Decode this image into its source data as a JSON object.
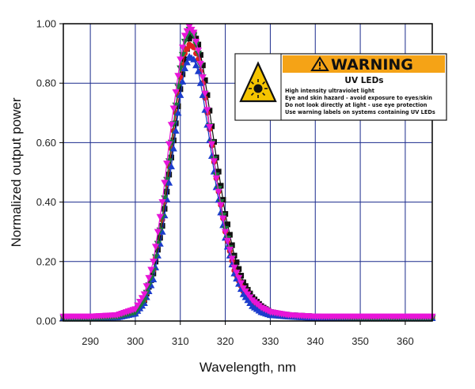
{
  "chart_data": {
    "type": "scatter",
    "title": "",
    "xlabel": "Wavelength, nm",
    "ylabel": "Normalized output power",
    "xlim": [
      284,
      366
    ],
    "ylim": [
      0,
      1.0
    ],
    "x_ticks": [
      290,
      300,
      310,
      320,
      330,
      340,
      350,
      360
    ],
    "y_ticks": [
      "0.00",
      "0.20",
      "0.40",
      "0.60",
      "0.80",
      "1.00"
    ],
    "grid": true,
    "series": [
      {
        "color": "#111111",
        "marker": "square",
        "x": [
          284,
          290,
          296,
          300,
          302,
          304,
          306,
          308,
          310,
          311,
          312,
          313,
          314,
          315,
          316,
          318,
          320,
          322,
          324,
          326,
          328,
          330,
          334,
          340,
          350,
          366
        ],
        "y": [
          0.01,
          0.01,
          0.015,
          0.03,
          0.07,
          0.16,
          0.32,
          0.55,
          0.78,
          0.88,
          0.95,
          0.97,
          0.93,
          0.86,
          0.76,
          0.55,
          0.36,
          0.22,
          0.13,
          0.08,
          0.05,
          0.03,
          0.02,
          0.015,
          0.01,
          0.01
        ]
      },
      {
        "color": "#e02020",
        "marker": "circle",
        "x": [
          284,
          290,
          296,
          300,
          302,
          304,
          306,
          308,
          310,
          311,
          312,
          313,
          314,
          315,
          316,
          318,
          320,
          322,
          324,
          326,
          328,
          330,
          334,
          340,
          350,
          366
        ],
        "y": [
          0.01,
          0.01,
          0.015,
          0.03,
          0.07,
          0.17,
          0.34,
          0.58,
          0.82,
          0.9,
          0.93,
          0.92,
          0.88,
          0.8,
          0.7,
          0.48,
          0.3,
          0.17,
          0.1,
          0.06,
          0.04,
          0.025,
          0.015,
          0.01,
          0.01,
          0.01
        ]
      },
      {
        "color": "#1b3ccc",
        "marker": "triangle-up",
        "x": [
          284,
          290,
          296,
          300,
          302,
          304,
          306,
          308,
          310,
          311,
          312,
          313,
          314,
          315,
          316,
          318,
          320,
          322,
          324,
          326,
          328,
          330,
          334,
          340,
          350,
          366
        ],
        "y": [
          0.01,
          0.01,
          0.012,
          0.025,
          0.06,
          0.14,
          0.3,
          0.52,
          0.76,
          0.85,
          0.89,
          0.88,
          0.84,
          0.76,
          0.66,
          0.45,
          0.28,
          0.16,
          0.09,
          0.05,
          0.03,
          0.02,
          0.015,
          0.01,
          0.01,
          0.01
        ]
      },
      {
        "color": "#1a7a3a",
        "marker": "triangle-down",
        "x": [
          284,
          290,
          296,
          300,
          302,
          304,
          306,
          308,
          310,
          311,
          312,
          313,
          314,
          315,
          316,
          318,
          320,
          322,
          324,
          326,
          328,
          330,
          334,
          340,
          350,
          366
        ],
        "y": [
          0.01,
          0.01,
          0.015,
          0.03,
          0.07,
          0.17,
          0.35,
          0.6,
          0.85,
          0.94,
          0.98,
          0.96,
          0.9,
          0.82,
          0.71,
          0.49,
          0.31,
          0.18,
          0.11,
          0.07,
          0.045,
          0.03,
          0.02,
          0.015,
          0.01,
          0.01
        ]
      },
      {
        "color": "#e815d8",
        "marker": "triangle-down",
        "x": [
          284,
          290,
          296,
          300,
          302,
          304,
          306,
          308,
          310,
          311,
          312,
          313,
          314,
          315,
          316,
          318,
          320,
          322,
          324,
          326,
          328,
          330,
          334,
          340,
          350,
          366
        ],
        "y": [
          0.015,
          0.015,
          0.02,
          0.04,
          0.09,
          0.2,
          0.4,
          0.66,
          0.88,
          0.96,
          0.99,
          0.97,
          0.91,
          0.82,
          0.71,
          0.48,
          0.3,
          0.18,
          0.11,
          0.07,
          0.045,
          0.03,
          0.02,
          0.015,
          0.015,
          0.015
        ]
      }
    ]
  },
  "warning_label": {
    "header": "WARNING",
    "subtitle": "UV LEDs",
    "lines": [
      "High intensity ultraviolet light",
      "Eye and skin hazard - avoid exposure to eyes/skin",
      "Do not look directly at light - use eye protection",
      "Use warning labels on systems containing UV LEDs"
    ],
    "header_color": "#f5a316",
    "icon_color": "#f5c400",
    "icon": "uv-hazard-icon"
  }
}
